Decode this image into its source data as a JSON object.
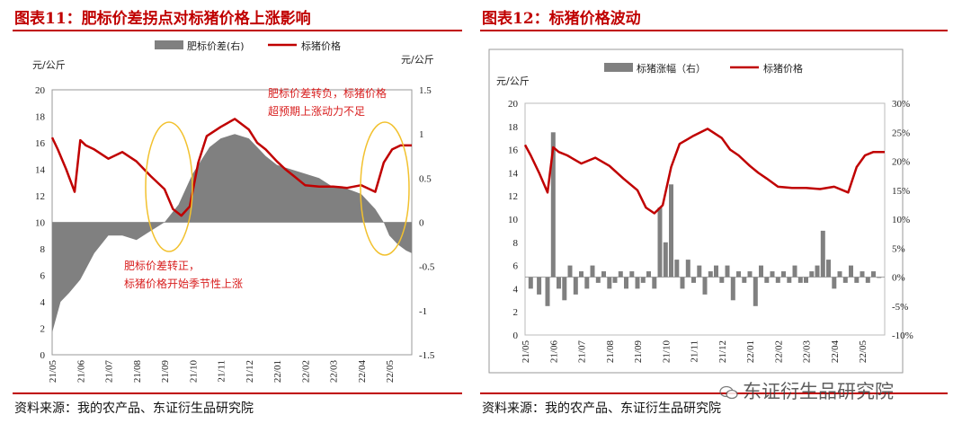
{
  "watermark": "东证衍生品研究院",
  "chart_data": [
    {
      "type": "bar+line",
      "title": "图表11：肥标价差拐点对标猪价格上涨影响",
      "source": "资料来源：我的农产品、东证衍生品研究院",
      "left_unit": "元/公斤",
      "right_unit": "元/公斤",
      "legend": [
        "肥标价差(右)",
        "标猪价格"
      ],
      "legend_position": "top",
      "left_axis": {
        "min": 0,
        "max": 20,
        "ticks": [
          "0",
          "2",
          "4",
          "6",
          "8",
          "10",
          "12",
          "14",
          "16",
          "18",
          "20"
        ]
      },
      "right_axis": {
        "min": -1.5,
        "max": 1.5,
        "ticks": [
          "-1.5",
          "-1",
          "-0.5",
          "0",
          "0.5",
          "1",
          "1.5"
        ]
      },
      "x_ticks": [
        "21/05",
        "21/06",
        "21/07",
        "21/08",
        "21/09",
        "21/10",
        "21/11",
        "21/12",
        "22/01",
        "22/02",
        "22/03",
        "22/04",
        "22/05"
      ],
      "annotations": [
        "肥标价差转负，标猪价格",
        "超预期上涨动力不足",
        "肥标价差转正，",
        "标猪价格开始季节性上涨"
      ],
      "series": [
        {
          "name": "肥标价差(右)",
          "kind": "area",
          "axis": "right",
          "x": [
            0,
            0.3,
            0.6,
            1.0,
            1.5,
            2.0,
            2.5,
            3.0,
            3.5,
            4.0,
            4.5,
            5.0,
            5.3,
            5.6,
            6.0,
            6.5,
            7.0,
            7.3,
            7.6,
            8.0,
            8.5,
            9.0,
            9.5,
            10.0,
            10.5,
            11.0,
            11.5,
            11.8,
            12.0,
            12.3,
            12.6,
            12.8
          ],
          "values": [
            -1.25,
            -0.9,
            -0.8,
            -0.65,
            -0.35,
            -0.15,
            -0.15,
            -0.2,
            -0.1,
            0.0,
            0.2,
            0.55,
            0.7,
            0.85,
            0.95,
            1.0,
            0.95,
            0.85,
            0.75,
            0.65,
            0.6,
            0.55,
            0.5,
            0.4,
            0.38,
            0.32,
            0.15,
            0.0,
            -0.15,
            -0.25,
            -0.32,
            -0.35
          ]
        },
        {
          "name": "标猪价格",
          "kind": "line",
          "axis": "left",
          "x": [
            0,
            0.2,
            0.5,
            0.8,
            1.0,
            1.2,
            1.5,
            2.0,
            2.5,
            3.0,
            3.5,
            4.0,
            4.3,
            4.6,
            4.9,
            5.2,
            5.5,
            6.0,
            6.5,
            7.0,
            7.3,
            7.6,
            8.0,
            8.3,
            8.6,
            9.0,
            9.5,
            10.0,
            10.5,
            11.0,
            11.5,
            11.8,
            12.1,
            12.4,
            12.8
          ],
          "values": [
            16.4,
            15.5,
            14.0,
            12.3,
            16.2,
            15.8,
            15.5,
            14.8,
            15.3,
            14.6,
            13.5,
            12.5,
            11.0,
            10.5,
            11.2,
            14.5,
            16.5,
            17.2,
            17.8,
            17.0,
            16.0,
            15.5,
            14.6,
            14.0,
            13.5,
            12.8,
            12.7,
            12.7,
            12.6,
            12.8,
            12.3,
            14.5,
            15.5,
            15.8,
            15.8
          ]
        }
      ]
    },
    {
      "type": "bar+line",
      "title": "图表12：标猪价格波动",
      "source": "资料来源：我的农产品、东证衍生品研究院",
      "left_unit": "元/公斤",
      "legend": [
        "标猪涨幅（右）",
        "标猪价格"
      ],
      "legend_position": "top",
      "left_axis": {
        "min": 0,
        "max": 20,
        "ticks": [
          "0",
          "2",
          "4",
          "6",
          "8",
          "10",
          "12",
          "14",
          "16",
          "18",
          "20"
        ]
      },
      "right_axis": {
        "min": -10,
        "max": 30,
        "ticks": [
          "-10%",
          "-5%",
          "0%",
          "5%",
          "10%",
          "15%",
          "20%",
          "25%",
          "30%"
        ]
      },
      "x_ticks": [
        "21/05",
        "21/06",
        "21/07",
        "21/08",
        "21/09",
        "21/10",
        "21/11",
        "21/12",
        "22/01",
        "22/02",
        "22/03",
        "22/04",
        "22/05"
      ],
      "series": [
        {
          "name": "标猪涨幅（右）",
          "kind": "bar",
          "axis": "right",
          "x": [
            0.2,
            0.5,
            0.8,
            1.0,
            1.2,
            1.4,
            1.6,
            1.8,
            2.0,
            2.2,
            2.4,
            2.6,
            2.8,
            3.0,
            3.2,
            3.4,
            3.6,
            3.8,
            4.0,
            4.2,
            4.4,
            4.6,
            4.8,
            5.0,
            5.2,
            5.4,
            5.6,
            5.8,
            6.0,
            6.2,
            6.4,
            6.6,
            6.8,
            7.0,
            7.2,
            7.4,
            7.6,
            7.8,
            8.0,
            8.2,
            8.4,
            8.6,
            8.8,
            9.0,
            9.2,
            9.4,
            9.6,
            9.8,
            10.0,
            10.2,
            10.4,
            10.6,
            10.8,
            11.0,
            11.2,
            11.4,
            11.6,
            11.8,
            12.0,
            12.2,
            12.4,
            12.6
          ],
          "values": [
            -2,
            -3,
            -5,
            25,
            -2,
            -4,
            2,
            -3,
            1,
            -2,
            2,
            -1,
            1,
            -2,
            -1,
            1,
            -2,
            1,
            -2,
            -1,
            1,
            -2,
            12,
            6,
            16,
            3,
            -2,
            3,
            -1,
            2,
            -3,
            1,
            2,
            -1,
            2,
            -4,
            1,
            -1,
            1,
            -5,
            2,
            -1,
            1,
            -1,
            1,
            -1,
            2,
            -1,
            -1,
            1,
            2,
            8,
            3,
            -2,
            1,
            -1,
            2,
            -1,
            1,
            -1,
            1,
            0
          ]
        },
        {
          "name": "标猪价格",
          "kind": "line",
          "axis": "left",
          "x": [
            0,
            0.2,
            0.5,
            0.8,
            1.0,
            1.2,
            1.5,
            2.0,
            2.5,
            3.0,
            3.5,
            4.0,
            4.3,
            4.6,
            4.9,
            5.2,
            5.5,
            6.0,
            6.5,
            7.0,
            7.3,
            7.6,
            8.0,
            8.3,
            8.6,
            9.0,
            9.5,
            10.0,
            10.5,
            11.0,
            11.5,
            11.8,
            12.1,
            12.4,
            12.8
          ],
          "values": [
            16.4,
            15.5,
            14.0,
            12.3,
            16.2,
            15.8,
            15.5,
            14.8,
            15.3,
            14.6,
            13.5,
            12.5,
            11.0,
            10.5,
            11.2,
            14.5,
            16.5,
            17.2,
            17.8,
            17.0,
            16.0,
            15.5,
            14.6,
            14.0,
            13.5,
            12.8,
            12.7,
            12.7,
            12.6,
            12.8,
            12.3,
            14.5,
            15.5,
            15.8,
            15.8
          ]
        }
      ]
    }
  ]
}
